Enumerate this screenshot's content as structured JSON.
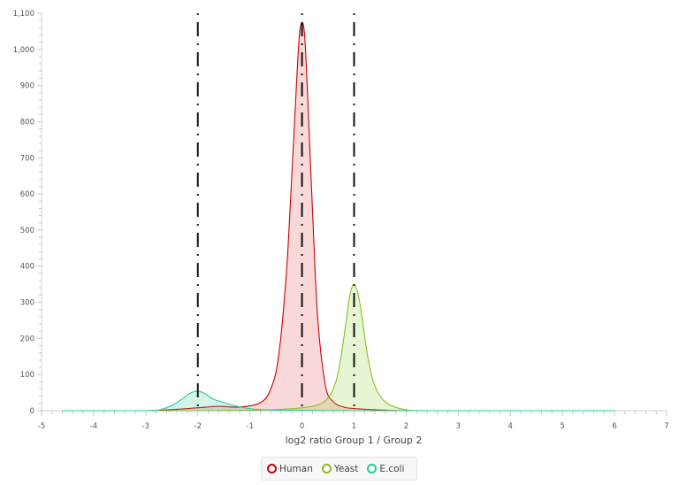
{
  "chart_data": {
    "type": "area",
    "title": "",
    "xlabel": "log2 ratio Group 1 / Group 2",
    "ylabel": "",
    "xlim": [
      -5,
      7
    ],
    "ylim": [
      0,
      1100
    ],
    "x_ticks": [
      "-5",
      "-4",
      "-3",
      "-2",
      "-1",
      "0",
      "1",
      "2",
      "3",
      "4",
      "5",
      "6",
      "7"
    ],
    "y_ticks": [
      "0",
      "100",
      "200",
      "300",
      "400",
      "500",
      "600",
      "700",
      "800",
      "900",
      "1,000",
      "1,100"
    ],
    "grid": false,
    "legend_position": "bottom",
    "vertical_reference_lines": [
      -2,
      0,
      1
    ],
    "series": [
      {
        "name": "Human",
        "color": "#cc0000",
        "fill": "rgba(220,60,60,0.2)",
        "x": [
          -4.6,
          -3.0,
          -2.5,
          -2.0,
          -1.6,
          -1.2,
          -0.8,
          -0.6,
          -0.45,
          -0.3,
          -0.2,
          -0.1,
          -0.05,
          0.0,
          0.05,
          0.1,
          0.2,
          0.3,
          0.45,
          0.6,
          0.8,
          1.0,
          1.5,
          2.0,
          3.0,
          6.0
        ],
        "y": [
          0,
          0,
          3,
          8,
          12,
          10,
          22,
          60,
          150,
          380,
          640,
          920,
          1040,
          1075,
          1040,
          900,
          560,
          260,
          70,
          25,
          10,
          6,
          2,
          0,
          0,
          0
        ]
      },
      {
        "name": "Yeast",
        "color": "#88c020",
        "fill": "rgba(150,210,60,0.22)",
        "x": [
          -4.6,
          -2.0,
          -1.0,
          -0.5,
          0.0,
          0.3,
          0.5,
          0.65,
          0.75,
          0.85,
          0.92,
          1.0,
          1.08,
          1.15,
          1.25,
          1.35,
          1.5,
          1.7,
          2.0,
          2.5,
          6.0
        ],
        "y": [
          0,
          0,
          1,
          3,
          8,
          16,
          35,
          80,
          150,
          250,
          320,
          350,
          320,
          260,
          160,
          90,
          40,
          15,
          3,
          0,
          0
        ]
      },
      {
        "name": "E.coli",
        "color": "#22cc99",
        "fill": "rgba(40,200,150,0.2)",
        "x": [
          -4.6,
          -3.0,
          -2.7,
          -2.5,
          -2.3,
          -2.15,
          -2.0,
          -1.85,
          -1.7,
          -1.5,
          -1.3,
          -1.1,
          -0.9,
          -0.6,
          0.0,
          1.0,
          6.0
        ],
        "y": [
          0,
          0,
          4,
          14,
          32,
          48,
          54,
          46,
          32,
          22,
          14,
          8,
          4,
          2,
          1,
          0,
          0
        ]
      }
    ]
  },
  "legend": {
    "items": [
      {
        "label": "Human",
        "color": "#cc0000"
      },
      {
        "label": "Yeast",
        "color": "#88c020"
      },
      {
        "label": "E.coli",
        "color": "#22cc99"
      }
    ]
  }
}
